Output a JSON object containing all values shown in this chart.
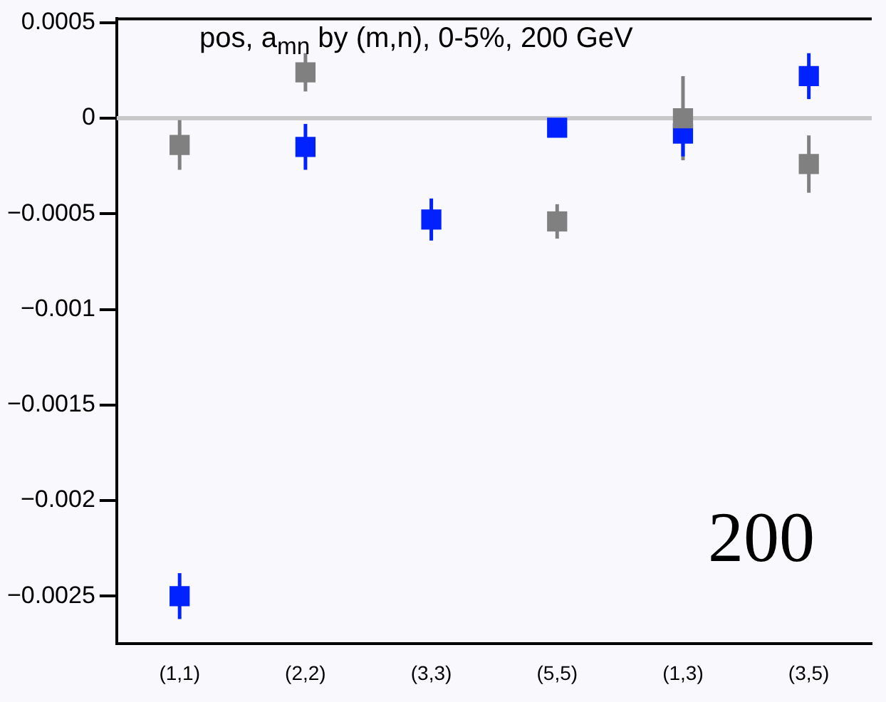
{
  "chart_data": {
    "type": "scatter",
    "title": "pos, a$_{mn}$ by (m,n), 0-5%, 200 GeV",
    "annotations": [
      "200"
    ],
    "categories": [
      "(1,1)",
      "(2,2)",
      "(3,3)",
      "(5,5)",
      "(1,3)",
      "(3,5)"
    ],
    "series": [
      {
        "color": "#808080",
        "x": [
          "(1,1)",
          "(2,2)",
          "(5,5)",
          "(1,3)",
          "(3,5)"
        ],
        "values": [
          -0.00014,
          0.00024,
          -0.00054,
          0,
          -0.00024
        ],
        "errors": [
          0.00013,
          0.0001,
          9e-05,
          0.00022,
          0.00015
        ]
      },
      {
        "color": "#0022ff",
        "x": [
          "(1,1)",
          "(2,2)",
          "(3,3)",
          "(5,5)",
          "(1,3)",
          "(3,5)"
        ],
        "values": [
          -0.0025,
          -0.00015,
          -0.00053,
          -5e-05,
          -8e-05,
          0.00022
        ],
        "errors": [
          0.00012,
          0.00012,
          0.00011,
          4e-05,
          0.00012,
          0.00012
        ]
      }
    ],
    "ylim": [
      -0.00275,
      0.00052
    ],
    "yticks": [
      -0.0025,
      -0.002,
      -0.0015,
      -0.001,
      -0.0005,
      0,
      0.0005
    ],
    "ref_lines": [
      {
        "axis": "y",
        "value": 0,
        "color": "#c8c8c8"
      }
    ],
    "grid": false,
    "legend": false,
    "marker": "square"
  }
}
